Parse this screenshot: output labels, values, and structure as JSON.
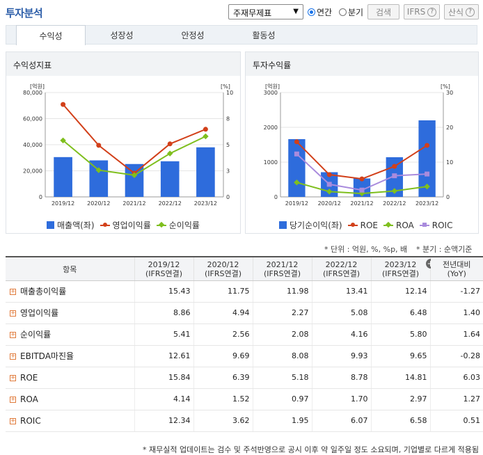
{
  "header": {
    "title": "투자분석",
    "select_value": "주재무제표",
    "radio_annual": "연간",
    "radio_quarter": "분기",
    "search_button": "검색",
    "ifrs_button": "IFRS",
    "formula_button": "산식",
    "help_glyph": "?"
  },
  "tabs": [
    "수익성",
    "성장성",
    "안정성",
    "활동성"
  ],
  "left_chart": {
    "panel_title": "수익성지표",
    "left_unit": "[억원]",
    "right_unit": "[%]",
    "chart_data": {
      "type": "bar",
      "categories": [
        "2019/12",
        "2020/12",
        "2021/12",
        "2022/12",
        "2023/12"
      ],
      "ylim": [
        0,
        80000
      ],
      "y_ticks": [
        "80,000",
        "60,000",
        "40,000",
        "20,000",
        "0"
      ],
      "y2lim": [
        0,
        10
      ],
      "y2_ticks": [
        "10",
        "8",
        "5",
        "3",
        "0"
      ],
      "series": [
        {
          "name": "매출액(좌)",
          "type": "bar",
          "axis": "left",
          "values": [
            30500,
            28000,
            25200,
            27300,
            38000
          ]
        },
        {
          "name": "영업이익률",
          "type": "line",
          "axis": "right",
          "values": [
            8.86,
            4.94,
            2.27,
            5.08,
            6.48
          ]
        },
        {
          "name": "순이익률",
          "type": "line",
          "axis": "right",
          "values": [
            5.41,
            2.56,
            2.08,
            4.16,
            5.8
          ]
        }
      ]
    }
  },
  "right_chart": {
    "panel_title": "투자수익률",
    "left_unit": "[억원]",
    "right_unit": "[%]",
    "chart_data": {
      "type": "bar",
      "categories": [
        "2019/12",
        "2020/12",
        "2021/12",
        "2022/12",
        "2023/12"
      ],
      "ylim": [
        0,
        3000
      ],
      "y_ticks": [
        "3000",
        "2000",
        "1000",
        "0"
      ],
      "y2lim": [
        0,
        30
      ],
      "y2_ticks": [
        "30",
        "20",
        "10",
        "0"
      ],
      "series": [
        {
          "name": "당기순이익(좌)",
          "type": "bar",
          "axis": "left",
          "values": [
            1660,
            710,
            530,
            1140,
            2200
          ]
        },
        {
          "name": "ROE",
          "type": "line",
          "axis": "right",
          "values": [
            15.84,
            6.39,
            5.18,
            8.78,
            14.81
          ]
        },
        {
          "name": "ROA",
          "type": "line",
          "axis": "right",
          "values": [
            4.14,
            1.52,
            0.97,
            1.7,
            2.97
          ]
        },
        {
          "name": "ROIC",
          "type": "line",
          "axis": "right",
          "values": [
            12.34,
            3.62,
            1.95,
            6.07,
            6.58
          ]
        }
      ]
    }
  },
  "colors": {
    "bar": "#2e6cdc",
    "red": "#d2401a",
    "green": "#7fbf1e",
    "purple": "#a98bdd"
  },
  "notes": {
    "unit_note": "* 단위 : 억원, %, %p, 배",
    "quarter_note": "* 분기 : 순액기준",
    "footer": "* 재무실적 업데이트는 검수 및 주석반영으로 공시 이후 약 일주일 정도 소요되며, 기업별로 다르게 적용됨"
  },
  "table": {
    "headers": [
      "항목",
      "2019/12\n(IFRS연결)",
      "2020/12\n(IFRS연결)",
      "2021/12\n(IFRS연결)",
      "2022/12\n(IFRS연결)",
      "2023/12\n(IFRS연결)",
      "전년대비\n(YoY)"
    ],
    "rows": [
      {
        "label": "매출총이익률",
        "values": [
          "15.43",
          "11.75",
          "11.98",
          "13.41",
          "12.14",
          "-1.27"
        ]
      },
      {
        "label": "영업이익률",
        "values": [
          "8.86",
          "4.94",
          "2.27",
          "5.08",
          "6.48",
          "1.40"
        ]
      },
      {
        "label": "순이익률",
        "values": [
          "5.41",
          "2.56",
          "2.08",
          "4.16",
          "5.80",
          "1.64"
        ]
      },
      {
        "label": "EBITDA마진율",
        "values": [
          "12.61",
          "9.69",
          "8.08",
          "9.93",
          "9.65",
          "-0.28"
        ]
      },
      {
        "label": "ROE",
        "values": [
          "15.84",
          "6.39",
          "5.18",
          "8.78",
          "14.81",
          "6.03"
        ]
      },
      {
        "label": "ROA",
        "values": [
          "4.14",
          "1.52",
          "0.97",
          "1.70",
          "2.97",
          "1.27"
        ]
      },
      {
        "label": "ROIC",
        "values": [
          "12.34",
          "3.62",
          "1.95",
          "6.07",
          "6.58",
          "0.51"
        ]
      }
    ]
  }
}
